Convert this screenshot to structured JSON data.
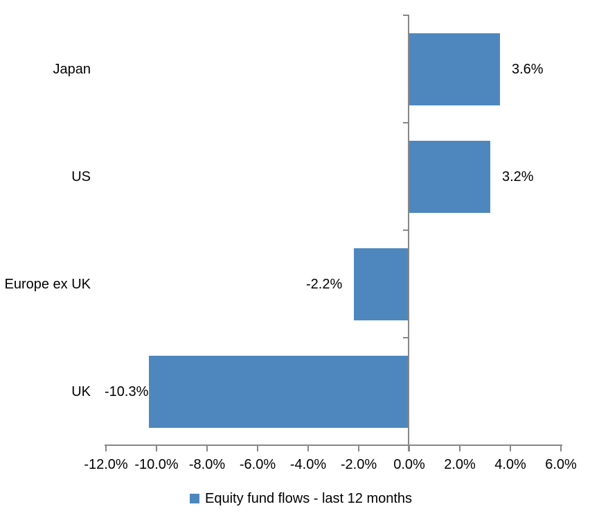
{
  "chart_data": {
    "type": "bar",
    "orientation": "horizontal",
    "title": "",
    "xlabel": "",
    "ylabel": "",
    "categories": [
      "Japan",
      "US",
      "Europe ex UK",
      "UK"
    ],
    "series": [
      {
        "name": "Equity fund flows - last 12 months",
        "values": [
          3.6,
          3.2,
          -2.2,
          -10.3
        ],
        "data_labels": [
          "3.6%",
          "3.2%",
          "-2.2%",
          "-10.3%"
        ]
      }
    ],
    "xlim": [
      -12,
      6
    ],
    "x_tick_step": 2,
    "x_tick_labels": [
      "-12.0%",
      "-10.0%",
      "-8.0%",
      "-6.0%",
      "-4.0%",
      "-2.0%",
      "0.0%",
      "2.0%",
      "4.0%",
      "6.0%"
    ],
    "grid": false,
    "legend_position": "bottom",
    "colors": {
      "bar": "#4E87BE",
      "axis": "#878787",
      "text": "#000000",
      "background": "#FFFFFF"
    }
  },
  "legend": {
    "label": "Equity fund flows - last 12 months"
  }
}
